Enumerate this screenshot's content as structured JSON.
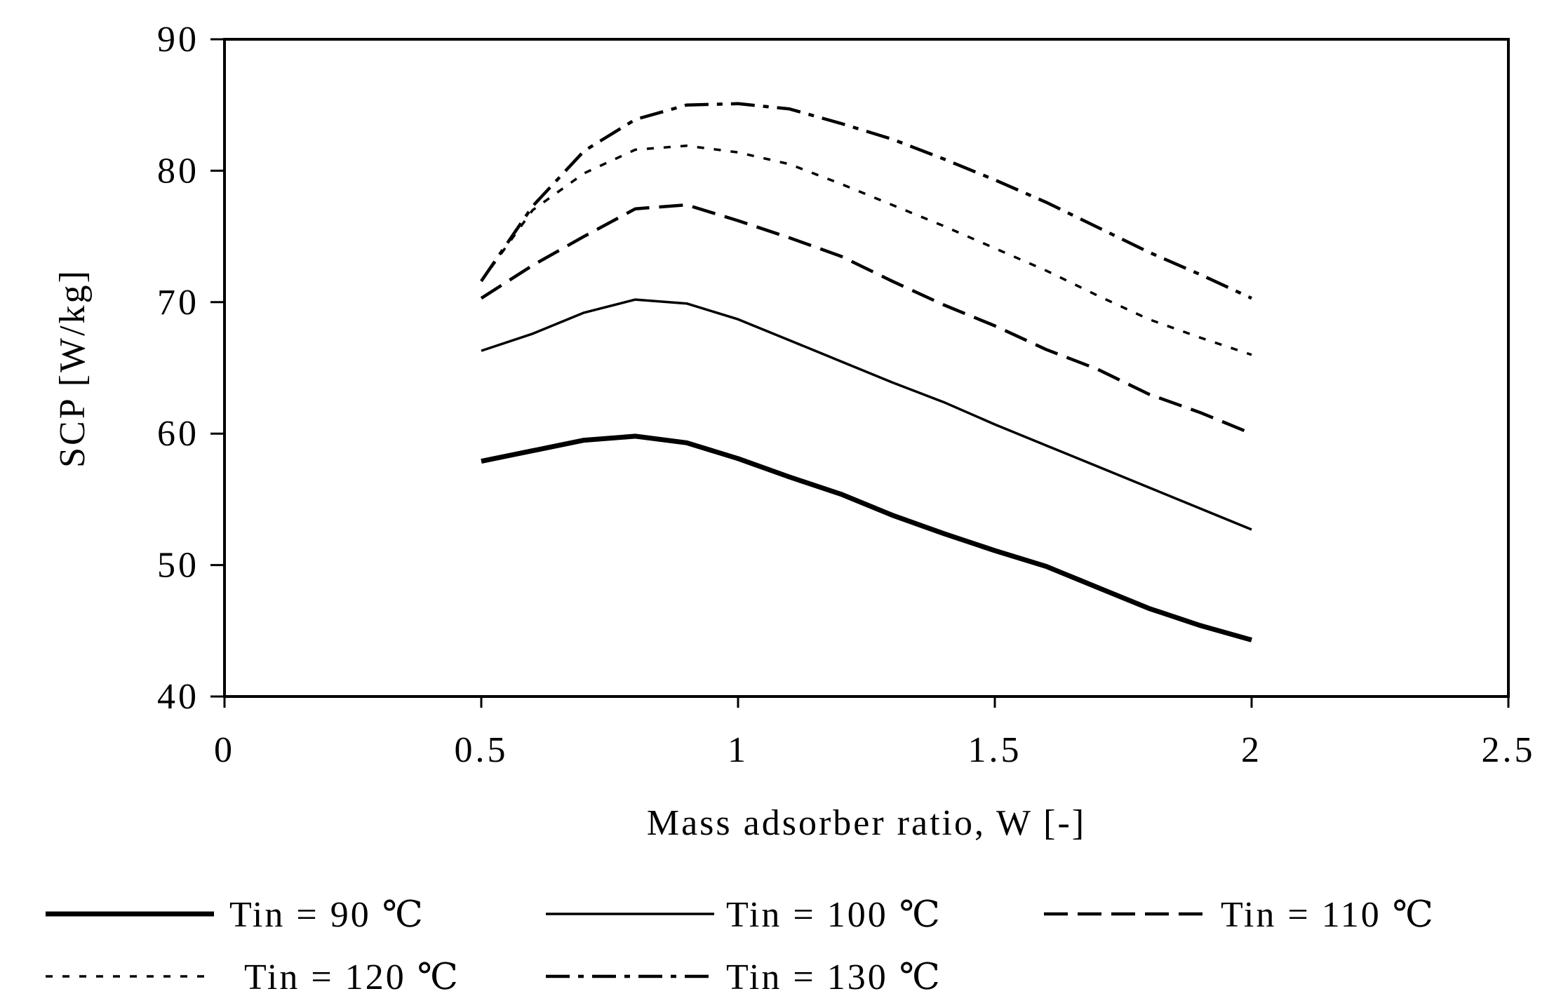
{
  "chart_data": {
    "type": "line",
    "title": "",
    "xlabel": "Mass adsorber ratio, W [-]",
    "ylabel": "SCP [W/kg]",
    "xlim": [
      0,
      2.5
    ],
    "ylim": [
      40,
      90
    ],
    "xticks": [
      0,
      0.5,
      1,
      1.5,
      2,
      2.5
    ],
    "yticks": [
      40,
      50,
      60,
      70,
      80,
      90
    ],
    "xtick_labels": [
      "0",
      "0.5",
      "1",
      "1.5",
      "2",
      "2.5"
    ],
    "ytick_labels": [
      "40",
      "50",
      "60",
      "70",
      "80",
      "90"
    ],
    "grid": false,
    "legend_position": "bottom",
    "series": [
      {
        "name": "Tin = 90 ℃",
        "style": "solid-thick",
        "x": [
          0.5,
          0.6,
          0.7,
          0.8,
          0.9,
          1.0,
          1.1,
          1.2,
          1.3,
          1.4,
          1.5,
          1.6,
          1.7,
          1.8,
          1.9,
          2.0
        ],
        "y": [
          57.9,
          58.7,
          59.5,
          59.8,
          59.3,
          58.1,
          56.7,
          55.4,
          53.8,
          52.4,
          51.1,
          49.9,
          48.3,
          46.7,
          45.4,
          44.3
        ]
      },
      {
        "name": "Tin = 100 ℃",
        "style": "solid",
        "x": [
          0.5,
          0.6,
          0.7,
          0.8,
          0.9,
          1.0,
          1.1,
          1.2,
          1.3,
          1.4,
          1.5,
          1.6,
          1.7,
          1.8,
          1.9,
          2.0
        ],
        "y": [
          66.3,
          67.6,
          69.2,
          70.2,
          69.9,
          68.7,
          67.1,
          65.5,
          63.9,
          62.4,
          60.7,
          59.1,
          57.5,
          55.9,
          54.3,
          52.7
        ]
      },
      {
        "name": "Tin = 110 ℃",
        "style": "dashed",
        "x": [
          0.5,
          0.6,
          0.7,
          0.8,
          0.9,
          1.0,
          1.1,
          1.2,
          1.3,
          1.4,
          1.5,
          1.6,
          1.7,
          1.8,
          1.9,
          2.0
        ],
        "y": [
          70.3,
          72.8,
          75.0,
          77.1,
          77.4,
          76.2,
          74.9,
          73.5,
          71.6,
          69.8,
          68.2,
          66.4,
          64.9,
          63.0,
          61.6,
          60.0
        ]
      },
      {
        "name": "Tin = 120 ℃",
        "style": "dotted",
        "x": [
          0.5,
          0.6,
          0.7,
          0.8,
          0.9,
          1.0,
          1.1,
          1.2,
          1.3,
          1.4,
          1.5,
          1.6,
          1.7,
          1.8,
          1.9,
          2.0
        ],
        "y": [
          71.6,
          77.0,
          79.8,
          81.6,
          81.9,
          81.4,
          80.5,
          79.0,
          77.4,
          75.8,
          74.1,
          72.4,
          70.5,
          68.7,
          67.3,
          66.0
        ]
      },
      {
        "name": "Tin = 130 ℃",
        "style": "dashdot",
        "x": [
          0.5,
          0.6,
          0.7,
          0.8,
          0.9,
          1.0,
          1.1,
          1.2,
          1.3,
          1.4,
          1.5,
          1.6,
          1.7,
          1.8,
          1.9,
          2.0
        ],
        "y": [
          71.6,
          77.3,
          81.5,
          83.9,
          85.0,
          85.1,
          84.7,
          83.6,
          82.4,
          80.9,
          79.3,
          77.6,
          75.7,
          73.8,
          72.1,
          70.3
        ]
      }
    ]
  }
}
